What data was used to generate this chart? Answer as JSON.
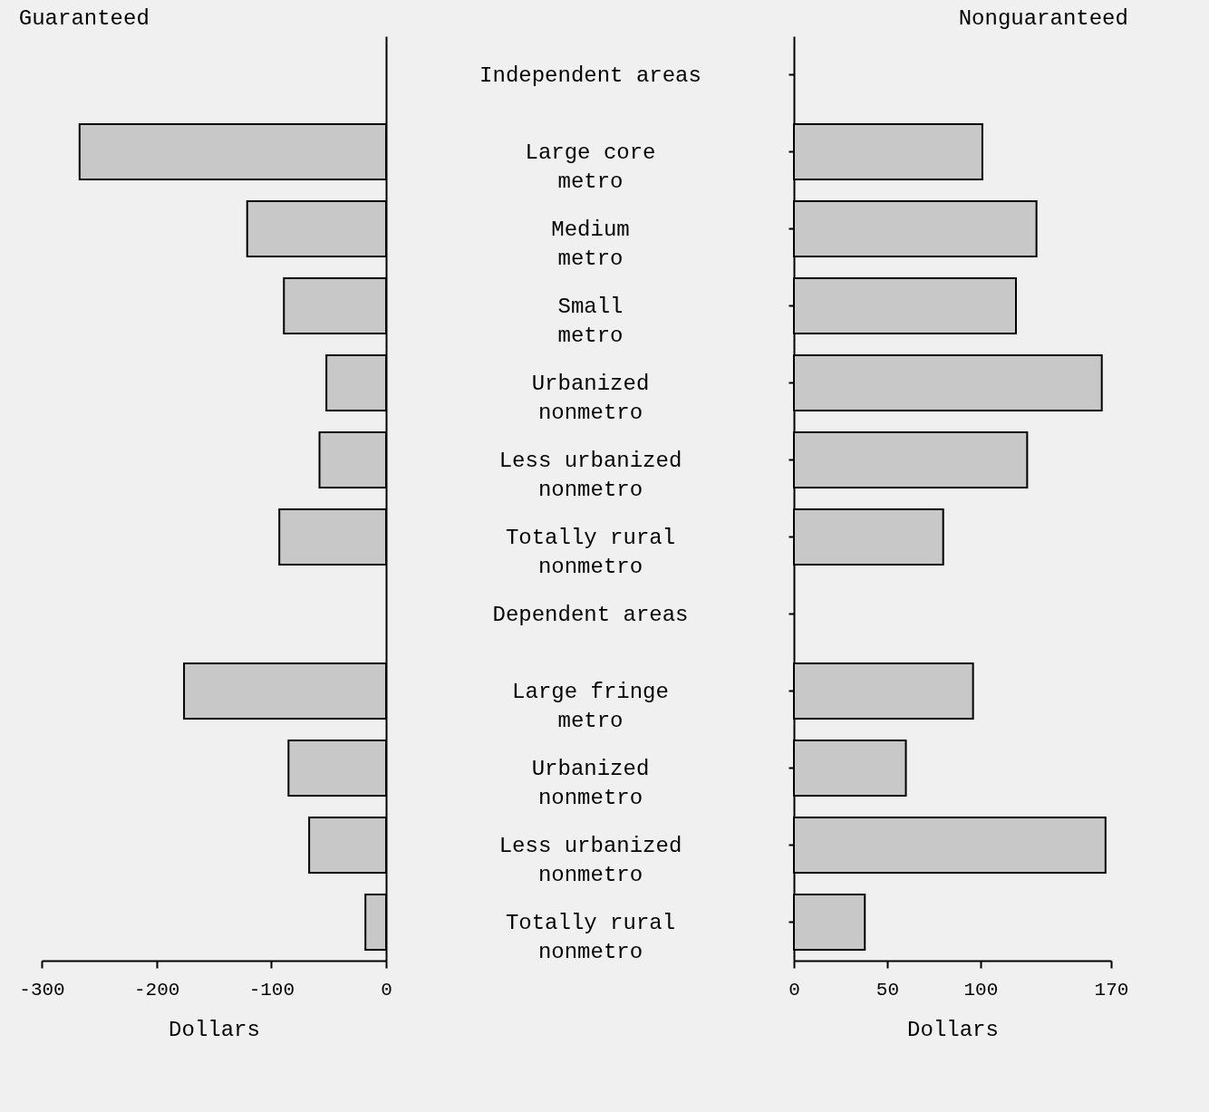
{
  "chart_data": [
    {
      "type": "bar",
      "orientation": "horizontal",
      "title": "Guaranteed",
      "xlabel": "Dollars",
      "categories": [
        "Independent areas",
        "Large core\nmetro",
        "Medium\nmetro",
        "Small\nmetro",
        "Urbanized\nnonmetro",
        "Less urbanized\nnonmetro",
        "Totally rural\nnonmetro",
        "Dependent areas",
        "Large fringe\nmetro",
        "Urbanized\nnonmetro",
        "Less urbanized\nnonmetro",
        "Totally rural\nnonmetro"
      ],
      "values": [
        null,
        -267,
        -121,
        -89,
        -52,
        -58,
        -93,
        null,
        -176,
        -85,
        -67,
        -18
      ],
      "color": "#c8c8c8",
      "xlim": [
        -300,
        0
      ],
      "xticks": [
        -300,
        -200,
        -100,
        0
      ],
      "grid": false
    },
    {
      "type": "bar",
      "orientation": "horizontal",
      "title": "Nonguaranteed",
      "xlabel": "Dollars",
      "categories": [
        null,
        null,
        null,
        null,
        null,
        null,
        null,
        null,
        null,
        null,
        null,
        null
      ],
      "values": [
        null,
        101,
        130,
        119,
        165,
        125,
        80,
        null,
        96,
        60,
        167,
        38
      ],
      "color": "#c8c8c8",
      "xlim": [
        0,
        170
      ],
      "xticks": [
        0,
        50,
        100,
        170
      ],
      "tick_labels": "x",
      "grid": false
    }
  ]
}
